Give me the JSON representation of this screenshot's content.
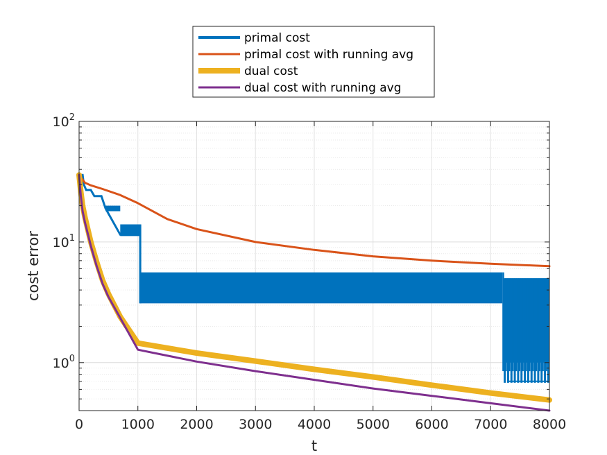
{
  "chart_data": {
    "type": "line",
    "xlabel": "t",
    "ylabel": "cost error",
    "xlim": [
      0,
      8000
    ],
    "ylim": [
      0.4,
      100
    ],
    "yscale": "log",
    "grid": true,
    "minor_grid": true,
    "legend_placement": "top-center (outside, above plot)",
    "x_ticks": [
      0,
      1000,
      2000,
      3000,
      4000,
      5000,
      6000,
      7000,
      8000
    ],
    "x_tick_labels": [
      "0",
      "1000",
      "2000",
      "3000",
      "4000",
      "5000",
      "6000",
      "7000",
      "8000"
    ],
    "y_ticks": [
      {
        "value": 1,
        "base": "10",
        "exp": "0"
      },
      {
        "value": 10,
        "base": "10",
        "exp": "1"
      },
      {
        "value": 100,
        "base": "10",
        "exp": "2"
      }
    ],
    "series": [
      {
        "name": "primal cost",
        "color": "#0072BD",
        "style": "oscillating band",
        "x": [
          0,
          60,
          80,
          120,
          200,
          260,
          380,
          450,
          700,
          1040,
          1050,
          7200,
          8000
        ],
        "y": [
          36,
          36,
          30,
          27,
          27,
          24,
          24,
          19,
          11.5,
          11.5,
          5.6,
          5.6,
          5.0
        ],
        "band_low": [
          {
            "x": 1040,
            "y": 3.1
          },
          {
            "x": 7200,
            "y": 3.1
          },
          {
            "x": 7210,
            "y": 0.85
          },
          {
            "x": 7300,
            "y": 0.7
          },
          {
            "x": 8000,
            "y": 0.7
          }
        ],
        "steps": [
          {
            "x0": 450,
            "x1": 700,
            "hi": 20,
            "lo": 18
          },
          {
            "x0": 700,
            "x1": 1040,
            "hi": 14,
            "lo": 11.2
          }
        ]
      },
      {
        "name": "primal cost with running avg",
        "color": "#D95319",
        "x": [
          0,
          100,
          200,
          400,
          700,
          1000,
          1500,
          2000,
          3000,
          4000,
          5000,
          6000,
          7000,
          8000
        ],
        "y": [
          36,
          31,
          29.5,
          27.5,
          24.5,
          21,
          15.5,
          12.8,
          10,
          8.6,
          7.6,
          7.0,
          6.6,
          6.3
        ]
      },
      {
        "name": "dual cost",
        "color": "#EDB120",
        "x": [
          0,
          30,
          60,
          100,
          200,
          300,
          400,
          500,
          700,
          1000,
          2000,
          3000,
          4000,
          5000,
          6000,
          7000,
          8000
        ],
        "y": [
          36,
          26,
          20,
          16,
          10,
          6.8,
          4.8,
          3.7,
          2.4,
          1.45,
          1.2,
          1.03,
          0.88,
          0.76,
          0.65,
          0.56,
          0.49
        ]
      },
      {
        "name": "dual cost with running avg",
        "color": "#7E2F8E",
        "x": [
          0,
          30,
          60,
          100,
          200,
          300,
          400,
          500,
          700,
          1000,
          2000,
          3000,
          4000,
          5000,
          6000,
          7000,
          8000
        ],
        "y": [
          36,
          24,
          18,
          14.5,
          9.3,
          6.3,
          4.5,
          3.5,
          2.35,
          1.28,
          1.02,
          0.85,
          0.72,
          0.61,
          0.53,
          0.46,
          0.4
        ]
      }
    ]
  }
}
